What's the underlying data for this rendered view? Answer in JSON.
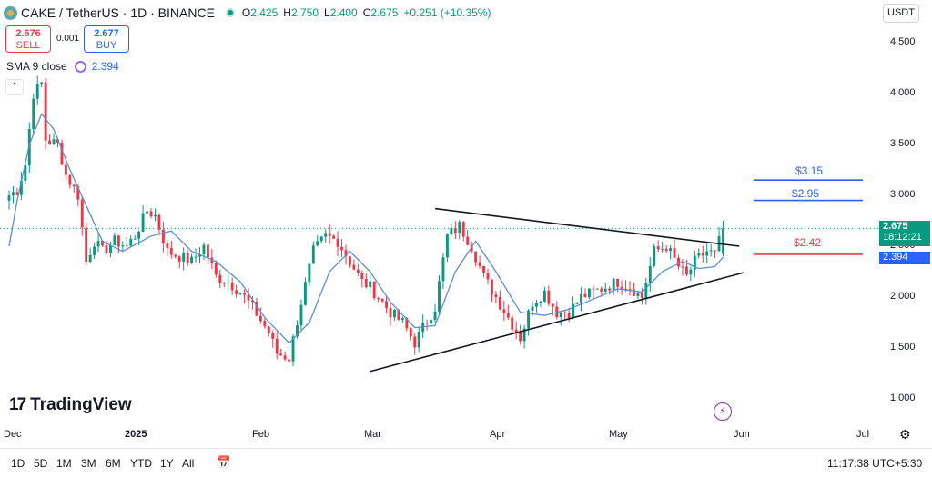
{
  "header": {
    "title": "CAKE / TetherUS · 1D · BINANCE",
    "ohlc": [
      {
        "label": "O",
        "value": "2.425"
      },
      {
        "label": "H",
        "value": "2.750"
      },
      {
        "label": "L",
        "value": "2.400"
      },
      {
        "label": "C",
        "value": "2.675"
      }
    ],
    "change": "+0.251 (+10.35%)"
  },
  "trade": {
    "sell_price": "2.676",
    "sell_label": "SELL",
    "spread": "0.001",
    "buy_price": "2.677",
    "buy_label": "BUY"
  },
  "indicator": {
    "name": "SMA 9 close",
    "value": "2.394"
  },
  "currency": "USDT",
  "price_tags": {
    "last_price": "2.675",
    "countdown": "18:12:21",
    "sma_value": "2.394"
  },
  "logo": "TradingView",
  "bottom": {
    "ranges": [
      "1D",
      "5D",
      "1M",
      "3M",
      "6M",
      "YTD",
      "1Y",
      "All"
    ],
    "clock": "11:17:38 UTC+5:30"
  },
  "colors": {
    "up": "#089981",
    "down": "#f23645",
    "sma": "#5b8ed6",
    "resistance": "#2962ff",
    "support": "#f23645",
    "trendline": "#131722"
  },
  "chart_data": {
    "type": "candlestick",
    "title": "CAKE / TetherUS · 1D · BINANCE",
    "y_ticks": [
      "4.500",
      "4.000",
      "3.500",
      "3.000",
      "2.500",
      "2.000",
      "1.500",
      "1.000"
    ],
    "ylim": [
      0.9,
      4.7
    ],
    "x_ticks": [
      "Dec",
      "2025",
      "Feb",
      "Mar",
      "Apr",
      "May",
      "Jun",
      "Jul"
    ],
    "x_range": [
      "2024-12-01",
      "2025-07-01"
    ],
    "grid": false,
    "anchors": [
      [
        "2024-12-01",
        3.0
      ],
      [
        "2024-12-03",
        3.05
      ],
      [
        "2024-12-05",
        3.3
      ],
      [
        "2024-12-07",
        4.0
      ],
      [
        "2024-12-09",
        4.1
      ],
      [
        "2024-12-10",
        3.55
      ],
      [
        "2024-12-13",
        3.5
      ],
      [
        "2024-12-15",
        3.2
      ],
      [
        "2024-12-18",
        3.0
      ],
      [
        "2024-12-20",
        2.35
      ],
      [
        "2024-12-22",
        2.55
      ],
      [
        "2024-12-24",
        2.45
      ],
      [
        "2024-12-27",
        2.55
      ],
      [
        "2024-12-30",
        2.5
      ],
      [
        "2025-01-01",
        2.6
      ],
      [
        "2025-01-04",
        2.85
      ],
      [
        "2025-01-06",
        2.8
      ],
      [
        "2025-01-09",
        2.45
      ],
      [
        "2025-01-12",
        2.4
      ],
      [
        "2025-01-15",
        2.35
      ],
      [
        "2025-01-18",
        2.5
      ],
      [
        "2025-01-21",
        2.2
      ],
      [
        "2025-01-24",
        2.15
      ],
      [
        "2025-01-27",
        2.05
      ],
      [
        "2025-01-30",
        1.9
      ],
      [
        "2025-02-03",
        1.65
      ],
      [
        "2025-02-05",
        1.45
      ],
      [
        "2025-02-08",
        1.4
      ],
      [
        "2025-02-11",
        1.95
      ],
      [
        "2025-02-14",
        2.45
      ],
      [
        "2025-02-17",
        2.6
      ],
      [
        "2025-02-20",
        2.55
      ],
      [
        "2025-02-23",
        2.35
      ],
      [
        "2025-02-26",
        2.15
      ],
      [
        "2025-02-28",
        2.1
      ],
      [
        "2025-03-02",
        2.0
      ],
      [
        "2025-03-05",
        1.85
      ],
      [
        "2025-03-08",
        1.75
      ],
      [
        "2025-03-11",
        1.55
      ],
      [
        "2025-03-13",
        1.7
      ],
      [
        "2025-03-16",
        1.9
      ],
      [
        "2025-03-19",
        2.6
      ],
      [
        "2025-03-22",
        2.7
      ],
      [
        "2025-03-25",
        2.5
      ],
      [
        "2025-03-28",
        2.2
      ],
      [
        "2025-03-31",
        2.0
      ],
      [
        "2025-04-03",
        1.8
      ],
      [
        "2025-04-06",
        1.6
      ],
      [
        "2025-04-09",
        1.95
      ],
      [
        "2025-04-12",
        2.05
      ],
      [
        "2025-04-15",
        1.85
      ],
      [
        "2025-04-18",
        1.85
      ],
      [
        "2025-04-21",
        2.0
      ],
      [
        "2025-04-24",
        2.05
      ],
      [
        "2025-04-27",
        2.1
      ],
      [
        "2025-04-30",
        2.15
      ],
      [
        "2025-05-03",
        2.1
      ],
      [
        "2025-05-06",
        2.0
      ],
      [
        "2025-05-09",
        2.45
      ],
      [
        "2025-05-12",
        2.5
      ],
      [
        "2025-05-15",
        2.3
      ],
      [
        "2025-05-17",
        2.2
      ],
      [
        "2025-05-19",
        2.35
      ],
      [
        "2025-05-22",
        2.45
      ],
      [
        "2025-05-24",
        2.42
      ],
      [
        "2025-05-26",
        2.675
      ]
    ],
    "sma": {
      "name": "SMA 9 close",
      "points": [
        [
          "2024-12-01",
          2.5
        ],
        [
          "2024-12-03",
          2.95
        ],
        [
          "2024-12-06",
          3.5
        ],
        [
          "2024-12-09",
          3.8
        ],
        [
          "2024-12-12",
          3.65
        ],
        [
          "2024-12-16",
          3.25
        ],
        [
          "2024-12-20",
          2.9
        ],
        [
          "2024-12-24",
          2.55
        ],
        [
          "2024-12-29",
          2.45
        ],
        [
          "2025-01-05",
          2.6
        ],
        [
          "2025-01-10",
          2.65
        ],
        [
          "2025-01-15",
          2.45
        ],
        [
          "2025-01-21",
          2.35
        ],
        [
          "2025-01-27",
          2.15
        ],
        [
          "2025-02-02",
          1.8
        ],
        [
          "2025-02-08",
          1.55
        ],
        [
          "2025-02-13",
          1.75
        ],
        [
          "2025-02-18",
          2.25
        ],
        [
          "2025-02-23",
          2.45
        ],
        [
          "2025-02-28",
          2.25
        ],
        [
          "2025-03-05",
          1.95
        ],
        [
          "2025-03-11",
          1.7
        ],
        [
          "2025-03-16",
          1.72
        ],
        [
          "2025-03-21",
          2.25
        ],
        [
          "2025-03-26",
          2.55
        ],
        [
          "2025-03-31",
          2.25
        ],
        [
          "2025-04-06",
          1.85
        ],
        [
          "2025-04-12",
          1.82
        ],
        [
          "2025-04-18",
          1.88
        ],
        [
          "2025-04-24",
          1.98
        ],
        [
          "2025-04-30",
          2.08
        ],
        [
          "2025-05-06",
          2.05
        ],
        [
          "2025-05-11",
          2.25
        ],
        [
          "2025-05-16",
          2.35
        ],
        [
          "2025-05-20",
          2.28
        ],
        [
          "2025-05-24",
          2.3
        ],
        [
          "2025-05-26",
          2.394
        ]
      ]
    },
    "trendlines": [
      {
        "name": "upper",
        "from": [
          "2025-03-16",
          2.87
        ],
        "to": [
          "2025-05-30",
          2.5
        ]
      },
      {
        "name": "lower",
        "from": [
          "2025-02-28",
          1.27
        ],
        "to": [
          "2025-05-31",
          2.24
        ]
      }
    ],
    "levels": [
      {
        "label": "$3.15",
        "value": 3.15,
        "color": "#2962ff"
      },
      {
        "label": "$2.95",
        "value": 2.95,
        "color": "#2962ff"
      },
      {
        "label": "$2.42",
        "value": 2.42,
        "color": "#f23645"
      }
    ],
    "last_price": 2.675
  }
}
